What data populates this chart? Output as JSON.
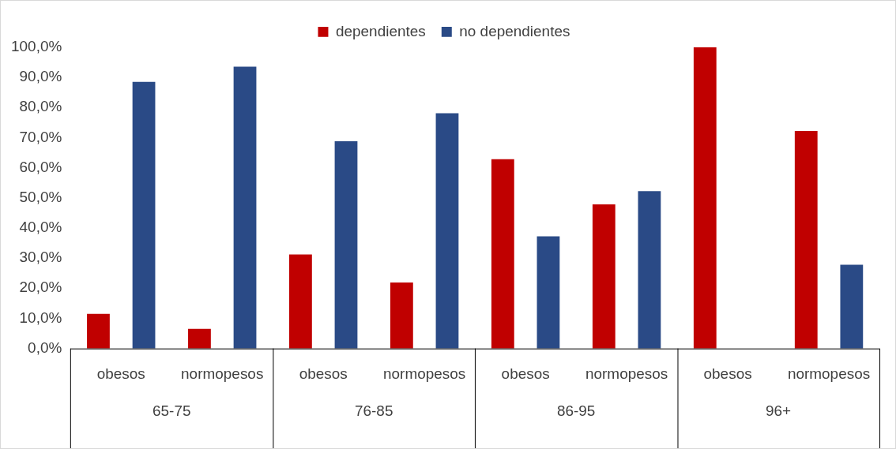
{
  "chart_data": {
    "type": "bar",
    "categories": [
      "obesos",
      "normopesos",
      "obesos",
      "normopesos",
      "obesos",
      "normopesos",
      "obesos",
      "normopesos"
    ],
    "series": [
      {
        "name": "dependientes",
        "color": "#c00000",
        "values": [
          11.5,
          6.5,
          31.2,
          21.9,
          62.8,
          47.8,
          100,
          72.2
        ]
      },
      {
        "name": "no dependientes",
        "color": "#2a4a86",
        "values": [
          88.5,
          93.5,
          68.8,
          78.1,
          37.2,
          52.2,
          0,
          27.8
        ]
      }
    ],
    "annotations": [
      "65-75",
      "76-85",
      "86-95",
      "96+"
    ],
    "ylim": [
      0,
      100
    ],
    "yticks": [
      {
        "value": 0,
        "label": "0,0%"
      },
      {
        "value": 10,
        "label": "10,0%"
      },
      {
        "value": 20,
        "label": "20,0%"
      },
      {
        "value": 30,
        "label": "30,0%"
      },
      {
        "value": 40,
        "label": "40,0%"
      },
      {
        "value": 50,
        "label": "50,0%"
      },
      {
        "value": 60,
        "label": "60,0%"
      },
      {
        "value": 70,
        "label": "70,0%"
      },
      {
        "value": 80,
        "label": "80,0%"
      },
      {
        "value": 90,
        "label": "90,0%"
      },
      {
        "value": 100,
        "label": "100,0%"
      }
    ],
    "grid": false,
    "legend": "top"
  }
}
